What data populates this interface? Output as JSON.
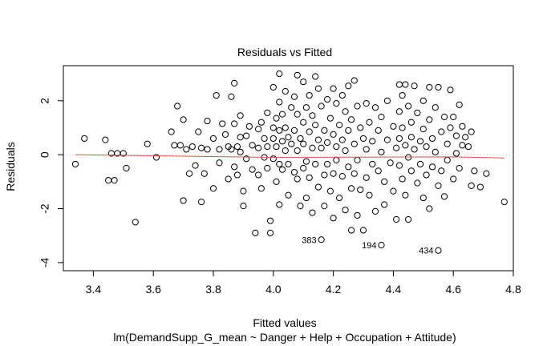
{
  "chart_data": {
    "type": "scatter",
    "title": "Residuals vs Fitted",
    "xlabel": "Fitted values",
    "ylabel": "Residuals",
    "subtitle": "lm(DemandSupp_G_mean ~ Danger + Help + Occupation + Attitude)",
    "xlim": [
      3.3,
      4.8
    ],
    "ylim": [
      -4.3,
      3.3
    ],
    "x_ticks": [
      3.4,
      3.6,
      3.8,
      4.0,
      4.2,
      4.4,
      4.6,
      4.8
    ],
    "x_tick_labels": [
      "3.4",
      "3.6",
      "3.8",
      "4.0",
      "4.2",
      "4.4",
      "4.6",
      "4.8"
    ],
    "y_ticks": [
      -4,
      -2,
      0,
      2
    ],
    "y_tick_labels": [
      "-4",
      "-2",
      "0",
      "2"
    ],
    "grid": false,
    "reference_line": {
      "y": 0,
      "style": "dotted",
      "color": "#bbbbbb"
    },
    "smooth_line": {
      "color": "#d9534f",
      "points": [
        [
          3.34,
          0.0
        ],
        [
          4.0,
          -0.1
        ],
        [
          4.6,
          -0.08
        ],
        [
          4.77,
          -0.12
        ]
      ]
    },
    "labeled_points": [
      {
        "label": "383",
        "x": 4.16,
        "y": -3.15
      },
      {
        "label": "194",
        "x": 4.36,
        "y": -3.35
      },
      {
        "label": "434",
        "x": 4.55,
        "y": -3.55
      }
    ],
    "points": [
      [
        3.34,
        -0.35
      ],
      [
        3.37,
        0.6
      ],
      [
        3.44,
        0.55
      ],
      [
        3.45,
        -0.95
      ],
      [
        3.46,
        0.05
      ],
      [
        3.47,
        -0.95
      ],
      [
        3.48,
        0.05
      ],
      [
        3.5,
        0.05
      ],
      [
        3.51,
        -0.5
      ],
      [
        3.54,
        -2.5
      ],
      [
        3.58,
        0.4
      ],
      [
        3.61,
        -0.1
      ],
      [
        3.66,
        0.85
      ],
      [
        3.67,
        0.35
      ],
      [
        3.68,
        1.8
      ],
      [
        3.69,
        0.35
      ],
      [
        3.7,
        1.3
      ],
      [
        3.7,
        -1.7
      ],
      [
        3.71,
        0.2
      ],
      [
        3.72,
        -0.7
      ],
      [
        3.73,
        0.3
      ],
      [
        3.74,
        -0.4
      ],
      [
        3.75,
        0.85
      ],
      [
        3.76,
        0.25
      ],
      [
        3.76,
        -1.75
      ],
      [
        3.77,
        -0.7
      ],
      [
        3.78,
        1.25
      ],
      [
        3.78,
        0.2
      ],
      [
        3.8,
        0.6
      ],
      [
        3.8,
        -1.25
      ],
      [
        3.81,
        2.2
      ],
      [
        3.82,
        0.2
      ],
      [
        3.82,
        -0.3
      ],
      [
        3.83,
        1.15
      ],
      [
        3.84,
        0.75
      ],
      [
        3.85,
        0.3
      ],
      [
        3.85,
        -0.9
      ],
      [
        3.86,
        2.15
      ],
      [
        3.86,
        0.2
      ],
      [
        3.87,
        2.65
      ],
      [
        3.87,
        1.15
      ],
      [
        3.87,
        -0.45
      ],
      [
        3.88,
        0.3
      ],
      [
        3.88,
        -0.75
      ],
      [
        3.89,
        1.45
      ],
      [
        3.89,
        0.65
      ],
      [
        3.89,
        0.1
      ],
      [
        3.9,
        -1.35
      ],
      [
        3.9,
        -1.9
      ],
      [
        3.91,
        0.7
      ],
      [
        3.91,
        -0.15
      ],
      [
        3.92,
        1.05
      ],
      [
        3.93,
        0.35
      ],
      [
        3.93,
        -0.55
      ],
      [
        3.94,
        -2.9
      ],
      [
        3.95,
        0.95
      ],
      [
        3.95,
        0.25
      ],
      [
        3.95,
        -0.75
      ],
      [
        3.96,
        1.2
      ],
      [
        3.96,
        -1.25
      ],
      [
        3.97,
        0.6
      ],
      [
        3.97,
        -0.1
      ],
      [
        3.98,
        1.55
      ],
      [
        3.98,
        0.3
      ],
      [
        3.98,
        -0.5
      ],
      [
        3.99,
        -2.45
      ],
      [
        3.99,
        -2.9
      ],
      [
        4.0,
        2.5
      ],
      [
        4.0,
        1.0
      ],
      [
        4.0,
        0.6
      ],
      [
        4.0,
        -0.15
      ],
      [
        4.01,
        1.35
      ],
      [
        4.01,
        0.3
      ],
      [
        4.01,
        -1.0
      ],
      [
        4.02,
        3.0
      ],
      [
        4.02,
        1.95
      ],
      [
        4.02,
        0.9
      ],
      [
        4.02,
        -0.35
      ],
      [
        4.02,
        -1.85
      ],
      [
        4.03,
        1.5
      ],
      [
        4.03,
        0.5
      ],
      [
        4.03,
        -0.55
      ],
      [
        4.04,
        2.35
      ],
      [
        4.04,
        1.0
      ],
      [
        4.04,
        0.15
      ],
      [
        4.05,
        0.65
      ],
      [
        4.05,
        -0.35
      ],
      [
        4.05,
        -1.5
      ],
      [
        4.06,
        1.75
      ],
      [
        4.06,
        0.4
      ],
      [
        4.07,
        2.15
      ],
      [
        4.07,
        0.9
      ],
      [
        4.07,
        -0.65
      ],
      [
        4.08,
        2.95
      ],
      [
        4.08,
        1.5
      ],
      [
        4.08,
        0.15
      ],
      [
        4.08,
        -0.9
      ],
      [
        4.09,
        0.6
      ],
      [
        4.09,
        -1.9
      ],
      [
        4.1,
        2.7
      ],
      [
        4.1,
        1.2
      ],
      [
        4.1,
        0.4
      ],
      [
        4.1,
        -0.5
      ],
      [
        4.11,
        1.75
      ],
      [
        4.11,
        -0.25
      ],
      [
        4.11,
        -1.6
      ],
      [
        4.12,
        2.2
      ],
      [
        4.12,
        0.85
      ],
      [
        4.12,
        -0.85
      ],
      [
        4.13,
        1.45
      ],
      [
        4.13,
        0.25
      ],
      [
        4.13,
        -2.15
      ],
      [
        4.14,
        2.9
      ],
      [
        4.14,
        1.1
      ],
      [
        4.14,
        -0.35
      ],
      [
        4.15,
        2.45
      ],
      [
        4.15,
        0.55
      ],
      [
        4.15,
        -1.2
      ],
      [
        4.16,
        1.8
      ],
      [
        4.16,
        0.25
      ],
      [
        4.17,
        0.9
      ],
      [
        4.17,
        -0.75
      ],
      [
        4.17,
        -1.9
      ],
      [
        4.18,
        2.05
      ],
      [
        4.18,
        0.45
      ],
      [
        4.18,
        -0.35
      ],
      [
        4.19,
        1.35
      ],
      [
        4.19,
        -1.35
      ],
      [
        4.2,
        2.45
      ],
      [
        4.2,
        0.75
      ],
      [
        4.2,
        -0.7
      ],
      [
        4.2,
        -2.35
      ],
      [
        4.21,
        1.9
      ],
      [
        4.21,
        0.3
      ],
      [
        4.21,
        -0.2
      ],
      [
        4.22,
        1.1
      ],
      [
        4.22,
        -1.6
      ],
      [
        4.23,
        2.2
      ],
      [
        4.23,
        0.55
      ],
      [
        4.23,
        -0.8
      ],
      [
        4.24,
        1.6
      ],
      [
        4.24,
        0.15
      ],
      [
        4.24,
        -2.05
      ],
      [
        4.25,
        2.55
      ],
      [
        4.25,
        0.9
      ],
      [
        4.25,
        -0.45
      ],
      [
        4.26,
        1.3
      ],
      [
        4.26,
        -1.25
      ],
      [
        4.26,
        -2.8
      ],
      [
        4.27,
        2.75
      ],
      [
        4.27,
        0.4
      ],
      [
        4.27,
        -0.7
      ],
      [
        4.28,
        1.8
      ],
      [
        4.28,
        -0.2
      ],
      [
        4.28,
        -2.25
      ],
      [
        4.29,
        1.0
      ],
      [
        4.29,
        -1.3
      ],
      [
        4.3,
        0.6
      ],
      [
        4.3,
        -2.8
      ],
      [
        4.31,
        1.9
      ],
      [
        4.31,
        0.2
      ],
      [
        4.31,
        -0.85
      ],
      [
        4.32,
        1.2
      ],
      [
        4.32,
        -1.5
      ],
      [
        4.33,
        0.5
      ],
      [
        4.33,
        -0.35
      ],
      [
        4.34,
        1.75
      ],
      [
        4.34,
        -2.1
      ],
      [
        4.35,
        0.9
      ],
      [
        4.35,
        -0.6
      ],
      [
        4.36,
        1.4
      ],
      [
        4.36,
        0.1
      ],
      [
        4.37,
        -1.0
      ],
      [
        4.37,
        -1.85
      ],
      [
        4.38,
        2.0
      ],
      [
        4.38,
        0.55
      ],
      [
        4.39,
        -0.3
      ],
      [
        4.4,
        1.05
      ],
      [
        4.4,
        -1.35
      ],
      [
        4.41,
        0.25
      ],
      [
        4.41,
        -2.4
      ],
      [
        4.42,
        2.6
      ],
      [
        4.42,
        1.6
      ],
      [
        4.42,
        0.6
      ],
      [
        4.42,
        -0.4
      ],
      [
        4.43,
        2.2
      ],
      [
        4.43,
        1.0
      ],
      [
        4.43,
        -0.9
      ],
      [
        4.44,
        2.6
      ],
      [
        4.44,
        0.35
      ],
      [
        4.44,
        -1.5
      ],
      [
        4.45,
        1.8
      ],
      [
        4.45,
        -0.1
      ],
      [
        4.45,
        -2.4
      ],
      [
        4.46,
        1.2
      ],
      [
        4.46,
        0.65
      ],
      [
        4.46,
        -0.6
      ],
      [
        4.47,
        2.55
      ],
      [
        4.47,
        0.2
      ],
      [
        4.48,
        1.55
      ],
      [
        4.48,
        -1.05
      ],
      [
        4.49,
        0.5
      ],
      [
        4.49,
        -0.35
      ],
      [
        4.5,
        2.0
      ],
      [
        4.5,
        0.95
      ],
      [
        4.5,
        -1.6
      ],
      [
        4.51,
        0.3
      ],
      [
        4.51,
        -0.75
      ],
      [
        4.52,
        2.5
      ],
      [
        4.52,
        1.3
      ],
      [
        4.52,
        -2.0
      ],
      [
        4.53,
        0.6
      ],
      [
        4.53,
        -0.45
      ],
      [
        4.54,
        1.75
      ],
      [
        4.54,
        0.1
      ],
      [
        4.55,
        2.5
      ],
      [
        4.55,
        -1.15
      ],
      [
        4.56,
        0.85
      ],
      [
        4.56,
        -0.6
      ],
      [
        4.57,
        1.4
      ],
      [
        4.57,
        -1.55
      ],
      [
        4.58,
        0.4
      ],
      [
        4.58,
        -0.2
      ],
      [
        4.59,
        2.4
      ],
      [
        4.59,
        1.0
      ],
      [
        4.6,
        1.4
      ],
      [
        4.6,
        -0.9
      ],
      [
        4.61,
        0.7
      ],
      [
        4.61,
        0.05
      ],
      [
        4.62,
        1.85
      ],
      [
        4.62,
        -0.5
      ],
      [
        4.63,
        1.05
      ],
      [
        4.63,
        0.35
      ],
      [
        4.64,
        0.65
      ],
      [
        4.65,
        0.3
      ],
      [
        4.66,
        0.85
      ],
      [
        4.66,
        -1.15
      ],
      [
        4.67,
        -0.6
      ],
      [
        4.69,
        -1.2
      ],
      [
        4.71,
        -0.7
      ],
      [
        4.77,
        -1.75
      ]
    ]
  }
}
